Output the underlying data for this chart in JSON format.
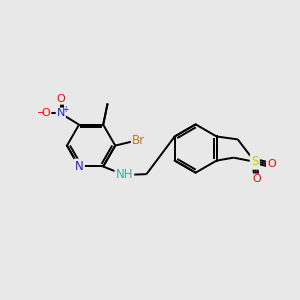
{
  "background_color": "#e8e8e8",
  "bond_color": "#000000",
  "atom_colors": {
    "N": "#2222dd",
    "O": "#ff0000",
    "Br": "#cc7700",
    "S": "#cccc00",
    "NH": "#44aaaa",
    "C": "#000000"
  },
  "font_size": 8.5,
  "lw": 1.4
}
